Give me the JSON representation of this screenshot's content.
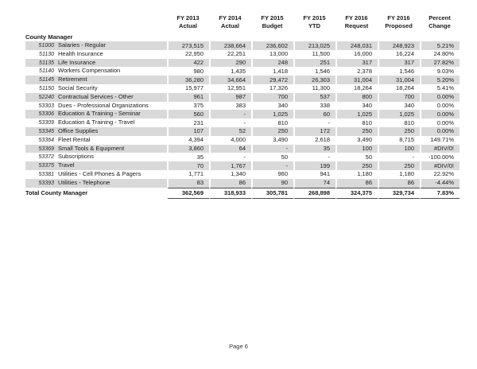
{
  "document": {
    "group_label": "County Manager",
    "total_label": "Total County Manager",
    "footer": "Page 6"
  },
  "table": {
    "columns": [
      {
        "line1": "FY 2013",
        "line2": "Actual"
      },
      {
        "line1": "FY 2014",
        "line2": "Actual"
      },
      {
        "line1": "FY 2015",
        "line2": "Budget"
      },
      {
        "line1": "FY 2015",
        "line2": "YTD"
      },
      {
        "line1": "FY 2016",
        "line2": "Request"
      },
      {
        "line1": "FY 2016",
        "line2": "Proposed"
      },
      {
        "line1": "Percent",
        "line2": "Change"
      }
    ],
    "rows": [
      {
        "code": "51000",
        "name": "Salaries - Regular",
        "values": [
          "273,515",
          "238,664",
          "236,602",
          "213,025",
          "248,031",
          "248,923",
          "5.21%"
        ]
      },
      {
        "code": "51130",
        "name": "Health Insurance",
        "values": [
          "22,950",
          "22,251",
          "13,000",
          "11,500",
          "16,000",
          "16,224",
          "24.80%"
        ]
      },
      {
        "code": "51135",
        "name": "Life Insurance",
        "values": [
          "422",
          "290",
          "248",
          "251",
          "317",
          "317",
          "27.82%"
        ]
      },
      {
        "code": "51140",
        "name": "Workers Compensation",
        "values": [
          "980",
          "1,435",
          "1,418",
          "1,546",
          "2,378",
          "1,546",
          "9.03%"
        ]
      },
      {
        "code": "51145",
        "name": "Retirement",
        "values": [
          "36,280",
          "34,664",
          "29,472",
          "26,303",
          "31,004",
          "31,004",
          "5.20%"
        ]
      },
      {
        "code": "51150",
        "name": "Social Security",
        "values": [
          "15,977",
          "12,951",
          "17,326",
          "11,300",
          "18,264",
          "18,264",
          "5.41%"
        ]
      },
      {
        "code": "52240",
        "name": "Contractual Services - Other",
        "values": [
          "961",
          "987",
          "700",
          "537",
          "800",
          "700",
          "0.00%"
        ]
      },
      {
        "code": "53303",
        "name": "Dues - Professional Organizations",
        "values": [
          "375",
          "383",
          "340",
          "338",
          "340",
          "340",
          "0.00%"
        ]
      },
      {
        "code": "53306",
        "name": "Education & Training - Seminar",
        "values": [
          "560",
          "-",
          "1,025",
          "60",
          "1,025",
          "1,025",
          "0.00%"
        ]
      },
      {
        "code": "53309",
        "name": "Education & Training - Travel",
        "values": [
          "231",
          "-",
          "810",
          "-",
          "810",
          "810",
          "0.00%"
        ]
      },
      {
        "code": "53345",
        "name": "Office Supplies",
        "values": [
          "107",
          "52",
          "250",
          "172",
          "250",
          "250",
          "0.00%"
        ]
      },
      {
        "code": "53364",
        "name": "Fleet Rental",
        "values": [
          "4,394",
          "4,000",
          "3,490",
          "2,618",
          "3,490",
          "8,715",
          "149.71%"
        ]
      },
      {
        "code": "53369",
        "name": "Small Tools & Equipment",
        "values": [
          "3,860",
          "64",
          "-",
          "35",
          "100",
          "100",
          "#DIV/0!"
        ]
      },
      {
        "code": "53372",
        "name": "Subscriptions",
        "values": [
          "35",
          "-",
          "50",
          "-",
          "50",
          "-",
          "-100.00%"
        ]
      },
      {
        "code": "53375",
        "name": "Travel",
        "values": [
          "70",
          "1,767",
          "-",
          "199",
          "250",
          "250",
          "#DIV/0!"
        ]
      },
      {
        "code": "53381",
        "name": "Utilities - Cell Phones & Pagers",
        "values": [
          "1,771",
          "1,340",
          "960",
          "941",
          "1,180",
          "1,180",
          "22.92%"
        ]
      },
      {
        "code": "53393",
        "name": "Utilities - Telephone",
        "values": [
          "83",
          "86",
          "90",
          "74",
          "86",
          "86",
          "-4.44%"
        ]
      }
    ],
    "total_values": [
      "362,569",
      "318,933",
      "305,781",
      "268,898",
      "324,375",
      "329,734",
      "7.83%"
    ]
  },
  "colors": {
    "stripe": "#d9d9d9",
    "text": "#1a1a1a",
    "total_rule": "#4d4d4d"
  }
}
